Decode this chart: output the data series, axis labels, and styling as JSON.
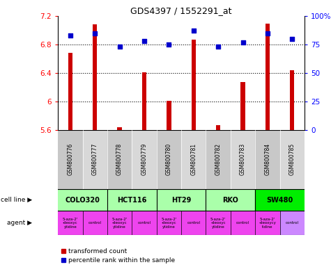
{
  "title": "GDS4397 / 1552291_at",
  "samples": [
    "GSM800776",
    "GSM800777",
    "GSM800778",
    "GSM800779",
    "GSM800780",
    "GSM800781",
    "GSM800782",
    "GSM800783",
    "GSM800784",
    "GSM800785"
  ],
  "transformed_count": [
    6.68,
    7.08,
    5.64,
    6.41,
    6.01,
    6.87,
    5.67,
    6.27,
    7.09,
    6.44
  ],
  "percentile_rank": [
    83,
    85,
    73,
    78,
    75,
    87,
    73,
    77,
    85,
    80
  ],
  "ylim_left": [
    5.6,
    7.2
  ],
  "ylim_right": [
    0,
    100
  ],
  "yticks_left": [
    5.6,
    6.0,
    6.4,
    6.8,
    7.2
  ],
  "yticks_right": [
    0,
    25,
    50,
    75,
    100
  ],
  "ytick_labels_right": [
    "0",
    "25",
    "50",
    "75",
    "100%"
  ],
  "bar_color": "#cc0000",
  "dot_color": "#0000cc",
  "cell_lines": [
    {
      "name": "COLO320",
      "start": 0,
      "end": 2,
      "color": "#aaffaa"
    },
    {
      "name": "HCT116",
      "start": 2,
      "end": 4,
      "color": "#aaffaa"
    },
    {
      "name": "HT29",
      "start": 4,
      "end": 6,
      "color": "#aaffaa"
    },
    {
      "name": "RKO",
      "start": 6,
      "end": 8,
      "color": "#aaffaa"
    },
    {
      "name": "SW480",
      "start": 8,
      "end": 10,
      "color": "#00ee00"
    }
  ],
  "agents": [
    {
      "name": "5-aza-2'\n-deoxyc\nytidine",
      "start": 0,
      "end": 1,
      "color": "#ee44ee"
    },
    {
      "name": "control",
      "start": 1,
      "end": 2,
      "color": "#ee44ee"
    },
    {
      "name": "5-aza-2'\n-deoxyc\nytidine",
      "start": 2,
      "end": 3,
      "color": "#ee44ee"
    },
    {
      "name": "control",
      "start": 3,
      "end": 4,
      "color": "#ee44ee"
    },
    {
      "name": "5-aza-2'\n-deoxyc\nytidine",
      "start": 4,
      "end": 5,
      "color": "#ee44ee"
    },
    {
      "name": "control",
      "start": 5,
      "end": 6,
      "color": "#ee44ee"
    },
    {
      "name": "5-aza-2'\n-deoxyc\nytidine",
      "start": 6,
      "end": 7,
      "color": "#ee44ee"
    },
    {
      "name": "control",
      "start": 7,
      "end": 8,
      "color": "#ee44ee"
    },
    {
      "name": "5-aza-2'\n-deoxycy\ntidine",
      "start": 8,
      "end": 9,
      "color": "#ee44ee"
    },
    {
      "name": "control",
      "start": 9,
      "end": 10,
      "color": "#cc88ff"
    }
  ],
  "legend_items": [
    {
      "label": "transformed count",
      "color": "#cc0000"
    },
    {
      "label": "percentile rank within the sample",
      "color": "#0000cc"
    }
  ],
  "cell_line_label": "cell line",
  "agent_label": "agent",
  "bar_width": 0.18,
  "dot_size": 18
}
